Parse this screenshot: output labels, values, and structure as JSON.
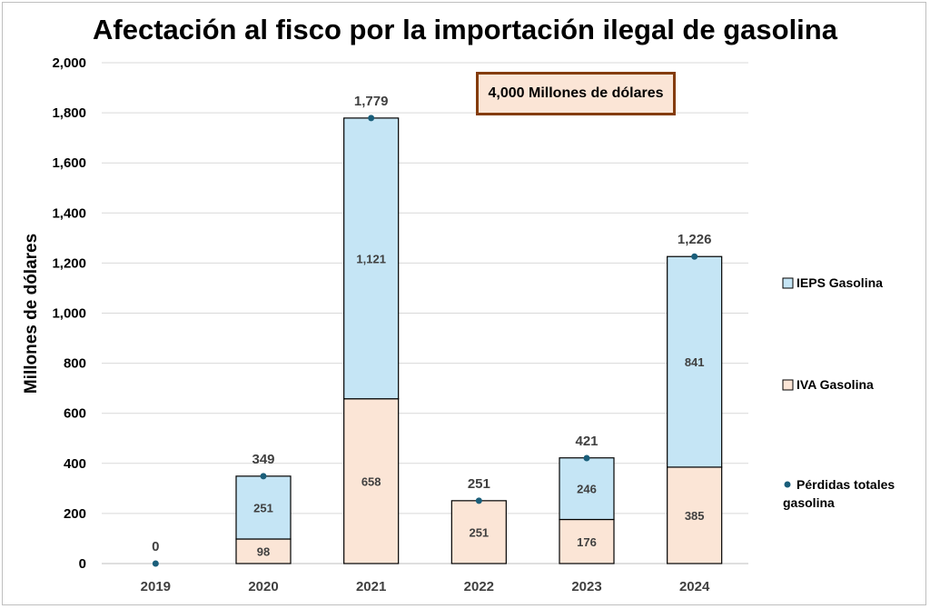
{
  "chart_data": {
    "type": "bar",
    "stacked": true,
    "title": "Afectación al fisco por la importación ilegal de gasolina",
    "xlabel": "",
    "ylabel": "Millones de dólares",
    "ylim": [
      0,
      2000
    ],
    "ytick_step": 200,
    "ytick_labels": [
      "0",
      "200",
      "400",
      "600",
      "800",
      "1,000",
      "1,200",
      "1,400",
      "1,600",
      "1,800",
      "2,000"
    ],
    "grid": true,
    "categories": [
      "2019",
      "2020",
      "2021",
      "2022",
      "2023",
      "2024"
    ],
    "series": [
      {
        "name": "IVA Gasolina",
        "values": [
          0,
          98,
          658,
          251,
          176,
          385
        ],
        "labels": [
          "",
          "98",
          "658",
          "251",
          "176",
          "385"
        ],
        "color": "#fbe5d6"
      },
      {
        "name": "IEPS Gasolina",
        "values": [
          0,
          251,
          1121,
          0,
          246,
          841
        ],
        "labels": [
          "",
          "251",
          "1,121",
          "",
          "246",
          "841"
        ],
        "color": "#c5e5f5"
      }
    ],
    "totals": {
      "name": "Pérdidas totales gasolina",
      "values": [
        0,
        349,
        1779,
        251,
        421,
        1226
      ],
      "labels": [
        "0",
        "349",
        "1,779",
        "251",
        "421",
        "1,226"
      ],
      "color": "#1a5e7a"
    },
    "legend": {
      "position": "right",
      "items": [
        "IEPS Gasolina",
        "IVA Gasolina",
        "Pérdidas totales gasolina"
      ]
    },
    "annotation": "4,000 Millones de dólares"
  }
}
